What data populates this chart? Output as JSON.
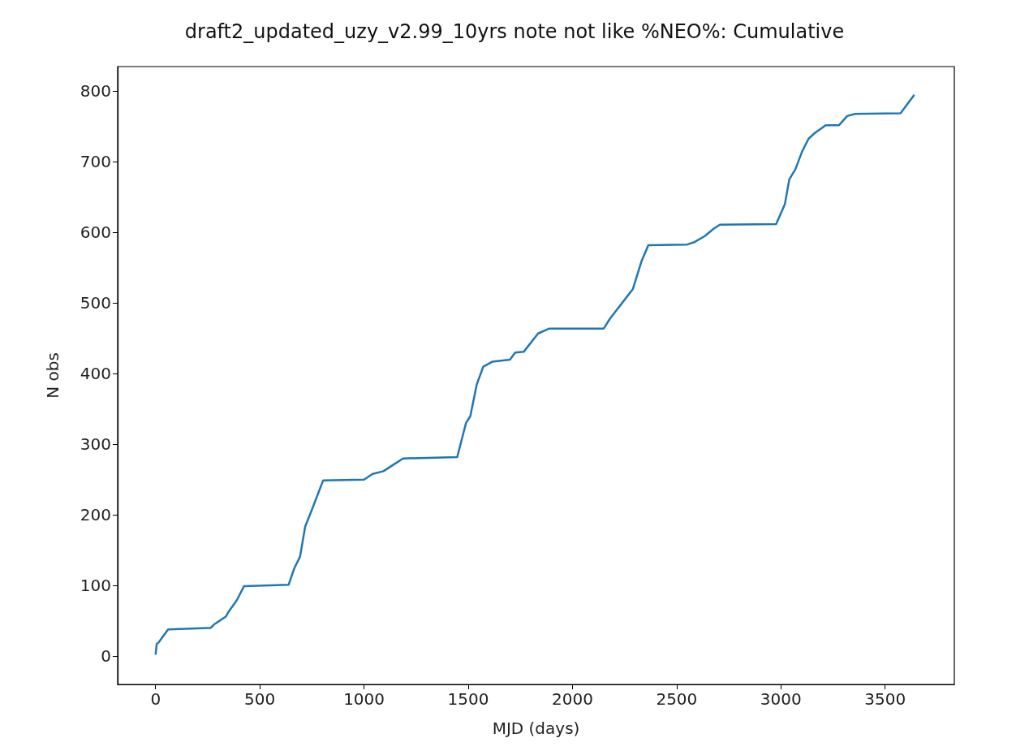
{
  "chart_data": {
    "type": "line",
    "title": "draft2_updated_uzy_v2.99_10yrs note not like %NEO%: Cumulative",
    "xlabel": "MJD (days)",
    "ylabel": "N obs",
    "x": [
      0,
      5,
      16,
      60,
      264,
      281,
      337,
      348,
      389,
      424,
      638,
      666,
      693,
      718,
      748,
      804,
      1000,
      1041,
      1093,
      1135,
      1187,
      1447,
      1489,
      1510,
      1541,
      1572,
      1615,
      1700,
      1725,
      1766,
      1835,
      1889,
      2150,
      2180,
      2290,
      2332,
      2364,
      2550,
      2582,
      2635,
      2676,
      2707,
      2977,
      3019,
      3040,
      3070,
      3102,
      3133,
      3163,
      3215,
      3279,
      3318,
      3357,
      3574,
      3640
    ],
    "series": [
      {
        "color": "#1f77b4",
        "values": [
          2,
          17,
          20,
          38,
          40,
          45,
          56,
          62,
          79,
          99,
          101,
          125,
          141,
          184,
          206,
          249,
          250,
          258,
          262,
          270,
          280,
          282,
          330,
          340,
          385,
          410,
          417,
          420,
          430,
          431,
          457,
          464,
          464,
          478,
          520,
          560,
          582,
          583,
          586,
          595,
          605,
          611,
          612,
          640,
          675,
          690,
          715,
          733,
          741,
          752,
          752,
          765,
          768,
          769,
          795
        ]
      }
    ],
    "xlim": [
      -182,
      3832
    ],
    "ylim": [
      -40,
      835
    ],
    "xticks": [
      0,
      500,
      1000,
      1500,
      2000,
      2500,
      3000,
      3500
    ],
    "yticks": [
      0,
      100,
      200,
      300,
      400,
      500,
      600,
      700,
      800
    ],
    "grid": false,
    "marker": "none",
    "line_style": "solid"
  }
}
